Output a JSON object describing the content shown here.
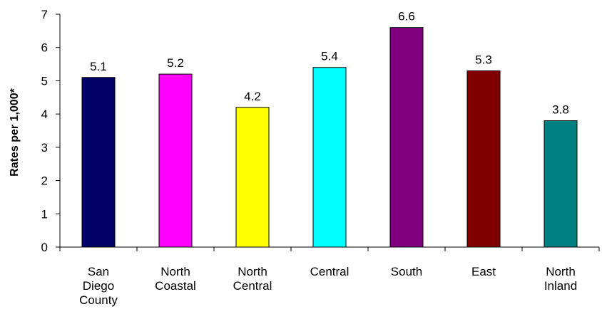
{
  "chart_data": {
    "type": "bar",
    "title": "",
    "xlabel": "",
    "ylabel": "Rates per 1,000*",
    "ylim": [
      0,
      7
    ],
    "yticks": [
      0,
      1,
      2,
      3,
      4,
      5,
      6,
      7
    ],
    "grid": false,
    "legend": "none",
    "categories": [
      [
        "San",
        "Diego",
        "County"
      ],
      [
        "North",
        "Coastal"
      ],
      [
        "North",
        "Central"
      ],
      [
        "Central"
      ],
      [
        "South"
      ],
      [
        "East"
      ],
      [
        "North",
        "Inland"
      ]
    ],
    "values": [
      5.1,
      5.2,
      4.2,
      5.4,
      6.6,
      5.3,
      3.8
    ],
    "data_labels": [
      "5.1",
      "5.2",
      "4.2",
      "5.4",
      "6.6",
      "5.3",
      "3.8"
    ],
    "colors": [
      "#000066",
      "#ff00ff",
      "#ffff00",
      "#00ffff",
      "#800080",
      "#800000",
      "#008080"
    ]
  }
}
